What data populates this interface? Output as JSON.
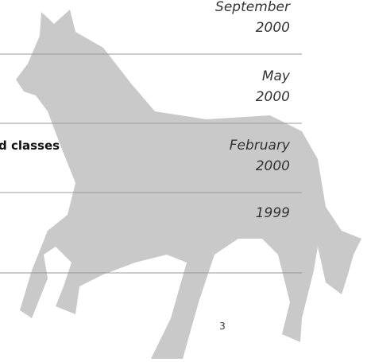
{
  "entries": [
    {
      "date_lines": [
        "September",
        "2000"
      ]
    },
    {
      "date_lines": [
        "May",
        "2000"
      ]
    },
    {
      "heading": "d classes",
      "date_lines": [
        "February",
        "2000"
      ]
    },
    {
      "date_lines": [
        "1999"
      ]
    }
  ],
  "page_number": "3"
}
